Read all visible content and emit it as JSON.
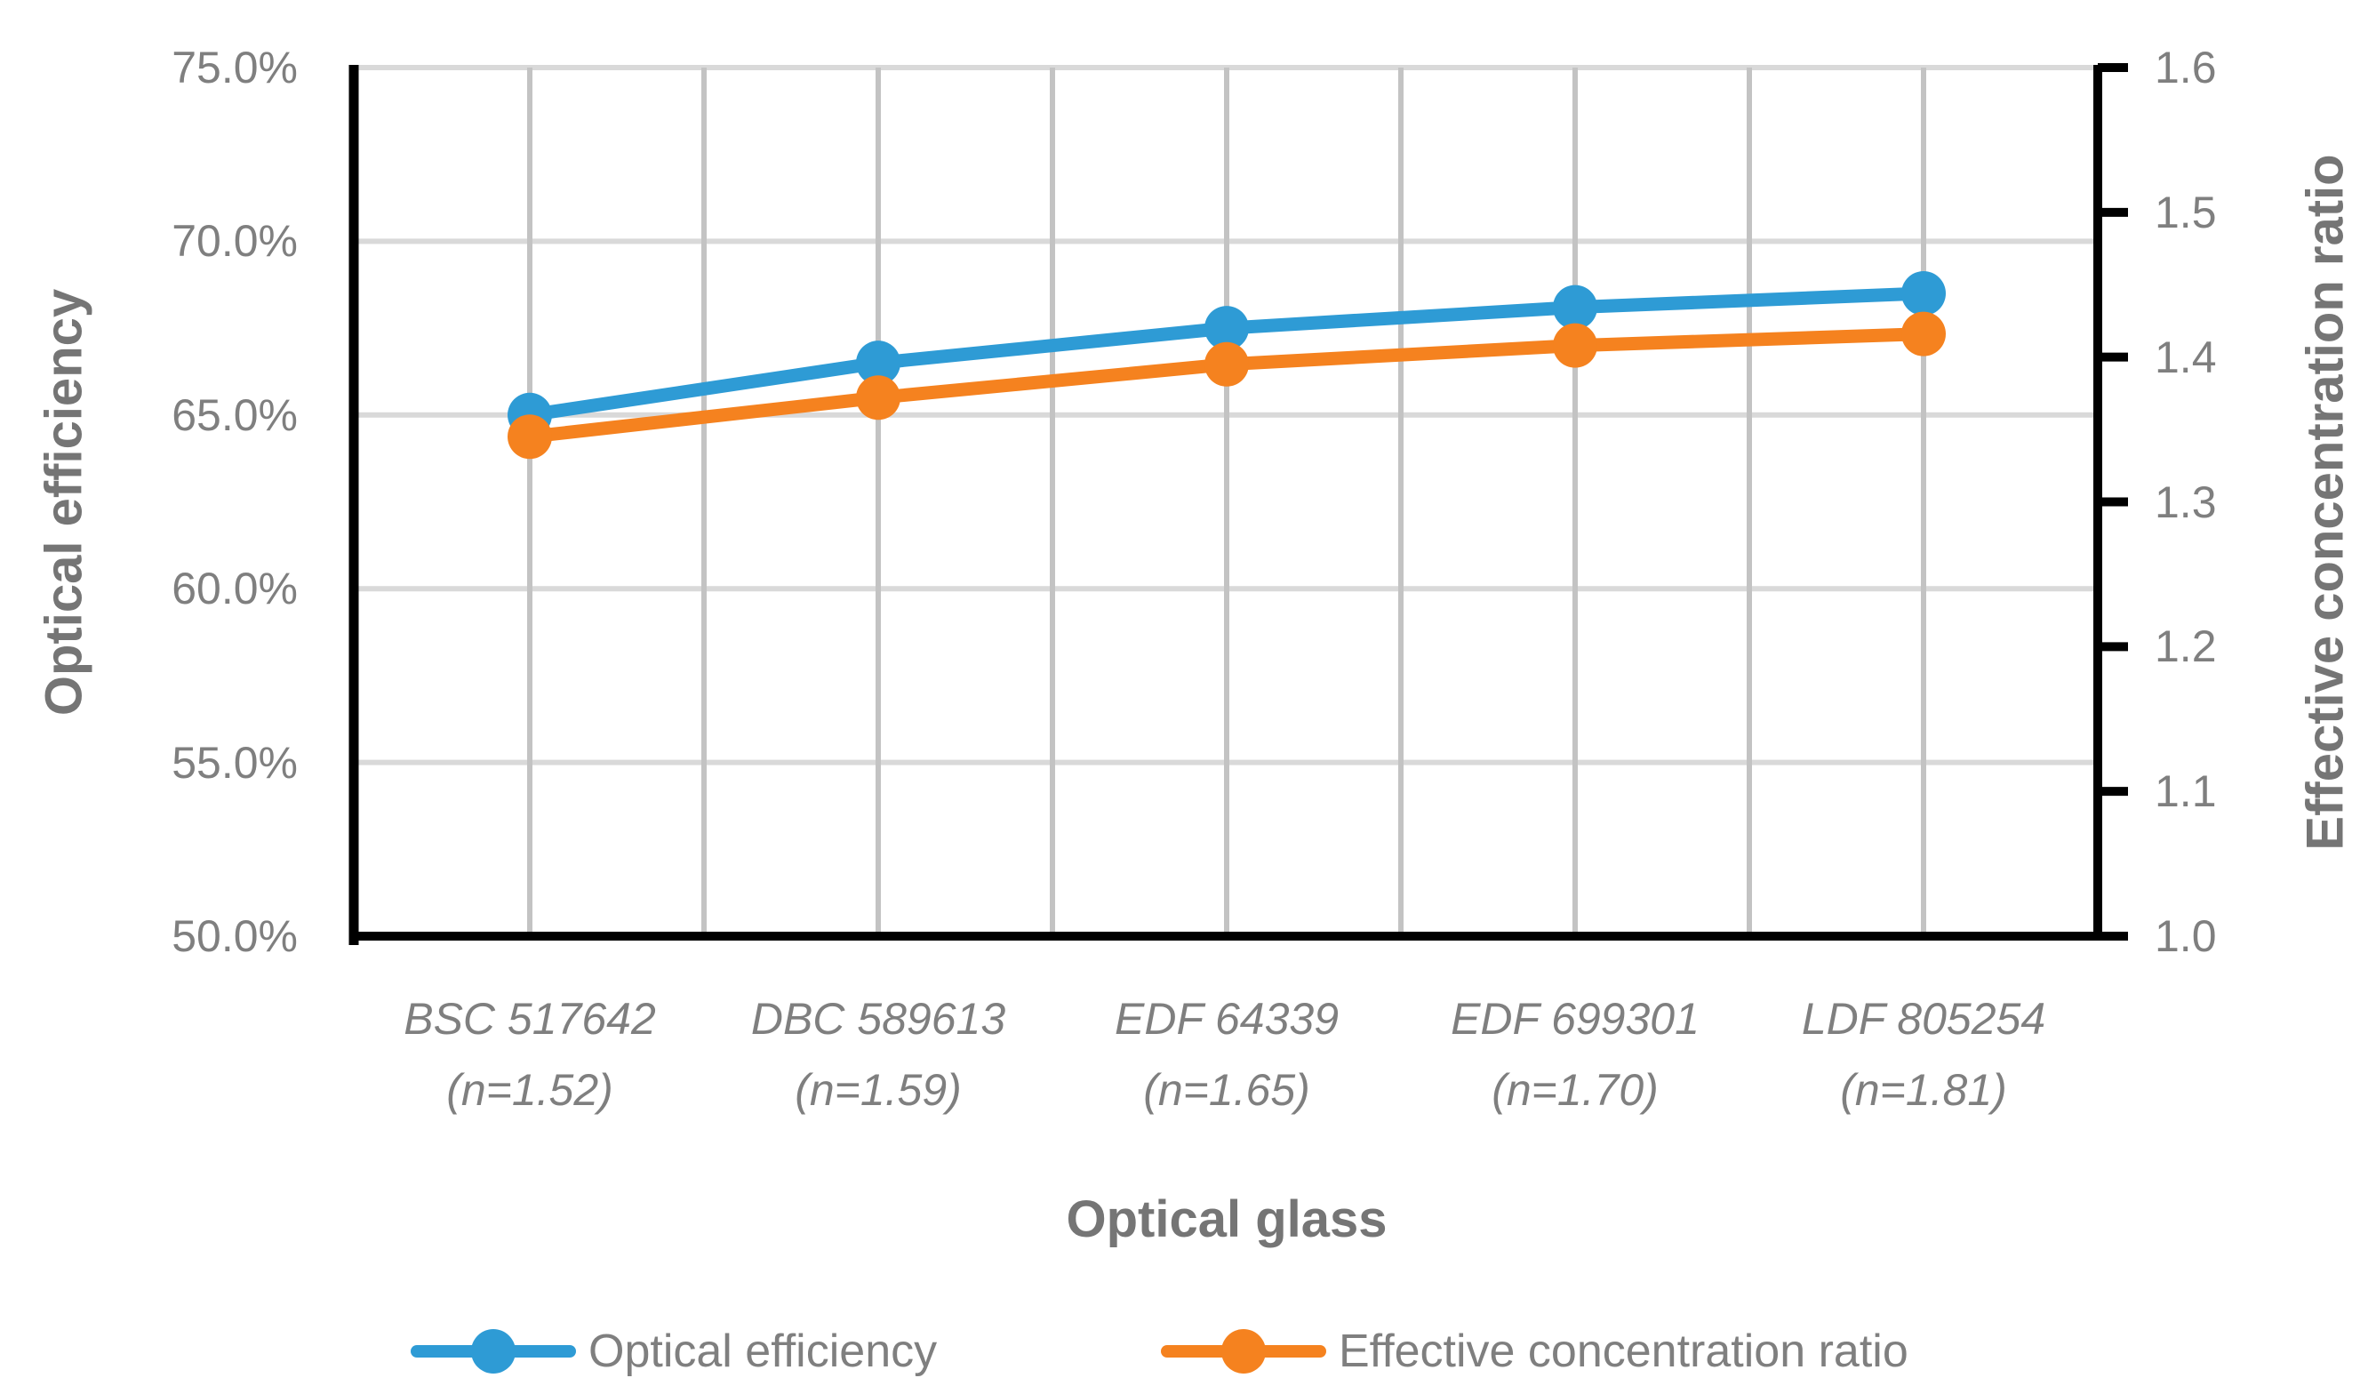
{
  "chart_data": {
    "type": "line",
    "x_axis": {
      "title": "Optical glass"
    },
    "left_axis": {
      "title": "Optical efficiency",
      "min": 50,
      "max": 75,
      "step": 5,
      "tick_labels": [
        "75.0%",
        "70.0%",
        "65.0%",
        "60.0%",
        "55.0%",
        "50.0%"
      ]
    },
    "right_axis": {
      "title": "Effective concentration ratio",
      "min": 1.0,
      "max": 1.6,
      "step": 0.1,
      "tick_labels": [
        "1.6",
        "1.5",
        "1.4",
        "1.3",
        "1.2",
        "1.1",
        "1.0"
      ]
    },
    "categories": [
      {
        "label": "BSC 517642",
        "sublabel": "(n=1.52)"
      },
      {
        "label": "DBC 589613",
        "sublabel": "(n=1.59)"
      },
      {
        "label": "EDF 64339",
        "sublabel": "(n=1.65)"
      },
      {
        "label": "EDF 699301",
        "sublabel": "(n=1.70)"
      },
      {
        "label": "LDF 805254",
        "sublabel": "(n=1.81)"
      }
    ],
    "series": [
      {
        "name": "Optical efficiency",
        "axis": "left",
        "color": "#2E9BD5",
        "values": [
          65.0,
          66.5,
          67.5,
          68.1,
          68.5
        ]
      },
      {
        "name": "Effective concentration ratio",
        "axis": "right",
        "color": "#F5821F",
        "values": [
          1.345,
          1.372,
          1.395,
          1.408,
          1.416
        ]
      }
    ],
    "legend": {
      "position": "bottom",
      "items": [
        "Optical efficiency",
        "Effective concentration ratio"
      ]
    },
    "grid": "on",
    "colors": {
      "gridline_horizontal": "#D9D9D9",
      "gridline_vertical": "#C3C3C3",
      "axis_line": "#000000",
      "label_text": "#7F7F7F"
    }
  }
}
